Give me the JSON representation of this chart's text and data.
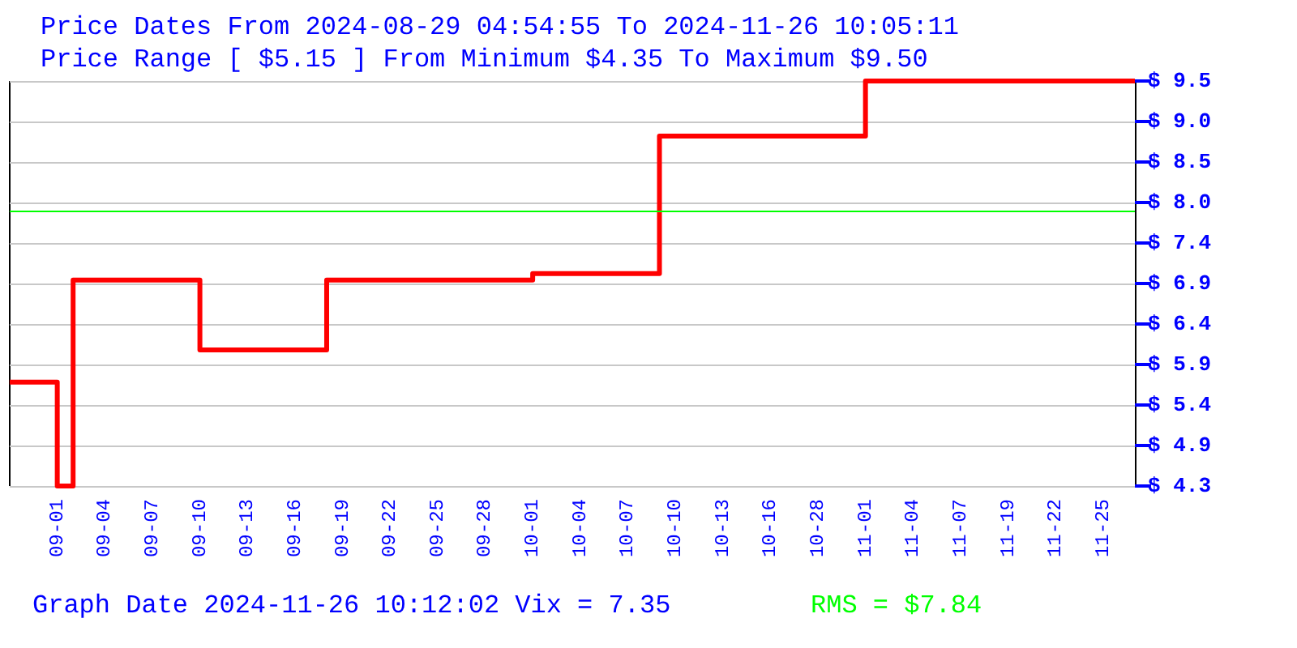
{
  "chart_data": {
    "type": "step",
    "title": "Price Dates From 2024-08-29 04:54:55 To 2024-11-26 10:05:11",
    "subtitle": "Price Range [ $5.15 ] From Minimum $4.35 To Maximum $9.50",
    "categories": [
      null,
      null,
      null,
      "09-01",
      null,
      null,
      "09-04",
      null,
      null,
      "09-07",
      null,
      null,
      "09-10",
      null,
      null,
      "09-13",
      null,
      null,
      "09-16",
      null,
      null,
      "09-19",
      null,
      null,
      "09-22",
      null,
      null,
      "09-25",
      null,
      null,
      "09-28",
      null,
      null,
      "10-01",
      null,
      null,
      "10-04",
      null,
      null,
      "10-07",
      null,
      null,
      "10-10",
      null,
      null,
      "10-13",
      null,
      null,
      "10-16",
      null,
      null,
      "10-28",
      null,
      null,
      "11-01",
      null,
      null,
      "11-04",
      null,
      null,
      "11-07",
      null,
      null,
      "11-19",
      null,
      null,
      "11-22",
      null,
      null,
      "11-25",
      null,
      null
    ],
    "series": [
      {
        "color": "#ff0000",
        "values": [
          5.67,
          5.67,
          5.67,
          4.35,
          6.97,
          6.97,
          6.97,
          6.97,
          6.97,
          6.97,
          6.97,
          6.97,
          6.08,
          6.08,
          6.08,
          6.08,
          6.08,
          6.08,
          6.08,
          6.08,
          6.97,
          6.97,
          6.97,
          6.97,
          6.97,
          6.97,
          6.97,
          6.97,
          6.97,
          6.97,
          6.97,
          6.97,
          6.97,
          7.05,
          7.05,
          7.05,
          7.05,
          7.05,
          7.05,
          7.05,
          7.05,
          8.8,
          8.8,
          8.8,
          8.8,
          8.8,
          8.8,
          8.8,
          8.8,
          8.8,
          8.8,
          8.8,
          8.8,
          8.8,
          9.5,
          9.5,
          9.5,
          9.5,
          9.5,
          9.5,
          9.5,
          9.5,
          9.5,
          9.5,
          9.5,
          9.5,
          9.5,
          9.5,
          9.5,
          9.5,
          9.5,
          9.5
        ]
      }
    ],
    "ylim": [
      4.35,
      9.5
    ],
    "yticks": [
      {
        "value": 4.35,
        "label": "$ 4.3"
      },
      {
        "value": 4.865,
        "label": "$ 4.9"
      },
      {
        "value": 5.38,
        "label": "$ 5.4"
      },
      {
        "value": 5.895,
        "label": "$ 5.9"
      },
      {
        "value": 6.41,
        "label": "$ 6.4"
      },
      {
        "value": 6.925,
        "label": "$ 6.9"
      },
      {
        "value": 7.44,
        "label": "$ 7.4"
      },
      {
        "value": 7.955,
        "label": "$ 8.0"
      },
      {
        "value": 8.47,
        "label": "$ 8.5"
      },
      {
        "value": 8.985,
        "label": "$ 9.0"
      },
      {
        "value": 9.5,
        "label": "$ 9.5"
      }
    ],
    "ref_lines": [
      {
        "axis": "y",
        "value": 7.84,
        "label": "RMS = $7.84",
        "color": "#00ff00"
      }
    ],
    "annotations": [
      "Graph Date 2024-11-26 10:12:02 Vix = 7.35"
    ],
    "grid": "y",
    "marker": "none",
    "line_style": "solid"
  }
}
